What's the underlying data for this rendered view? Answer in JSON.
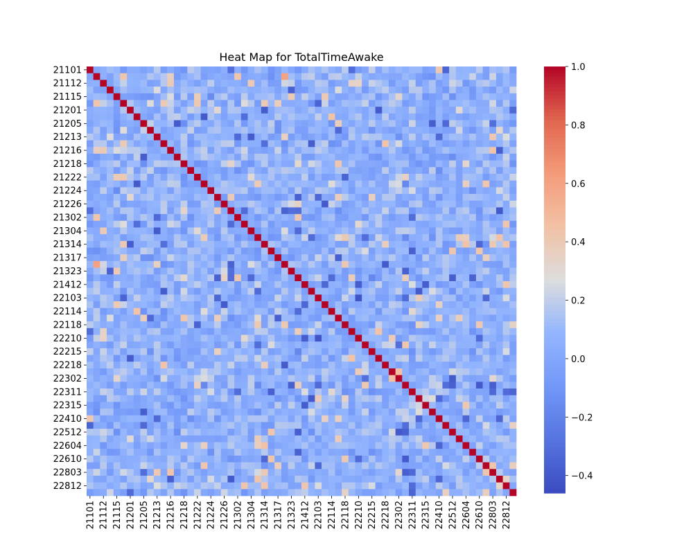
{
  "chart_data": {
    "type": "heatmap",
    "title": "Heat Map for TotalTimeAwake",
    "xlabel": "",
    "ylabel": "",
    "n_cells": 64,
    "diagonal_value": 1.0,
    "tick_labels": [
      "21101",
      "21112",
      "21115",
      "21201",
      "21205",
      "21213",
      "21216",
      "21218",
      "21222",
      "21224",
      "21226",
      "21302",
      "21304",
      "21314",
      "21317",
      "21323",
      "21412",
      "22103",
      "22114",
      "22118",
      "22210",
      "22215",
      "22218",
      "22302",
      "22311",
      "22315",
      "22410",
      "22512",
      "22604",
      "22610",
      "22803",
      "22812"
    ],
    "colormap": "coolwarm",
    "colorbar": {
      "min": -0.46,
      "max": 1.0,
      "ticks": [
        -0.4,
        -0.2,
        0.0,
        0.2,
        0.4,
        0.6,
        0.8,
        1.0
      ],
      "tick_labels": [
        "−0.4",
        "−0.2",
        "0.0",
        "0.2",
        "0.4",
        "0.6",
        "0.8",
        "1.0"
      ]
    },
    "approx_offdiagonal_range": [
      -0.45,
      0.6
    ],
    "notable_cells": [
      {
        "row": 0,
        "col": 21,
        "value": -0.3
      },
      {
        "row": 0,
        "col": 53,
        "value": -0.35
      },
      {
        "row": 1,
        "col": 29,
        "value": 0.6
      },
      {
        "row": 29,
        "col": 1,
        "value": 0.6
      },
      {
        "row": 8,
        "col": 51,
        "value": -0.38
      },
      {
        "row": 8,
        "col": 53,
        "value": -0.33
      },
      {
        "row": 40,
        "col": 34,
        "value": -0.42
      },
      {
        "row": 34,
        "col": 40,
        "value": -0.42
      },
      {
        "row": 21,
        "col": 19,
        "value": 0.4
      },
      {
        "row": 44,
        "col": 26,
        "value": 0.38
      },
      {
        "row": 46,
        "col": 41,
        "value": -0.3
      },
      {
        "row": 55,
        "col": 6,
        "value": 0.3
      },
      {
        "row": 24,
        "col": 2,
        "value": 0.4
      }
    ]
  }
}
